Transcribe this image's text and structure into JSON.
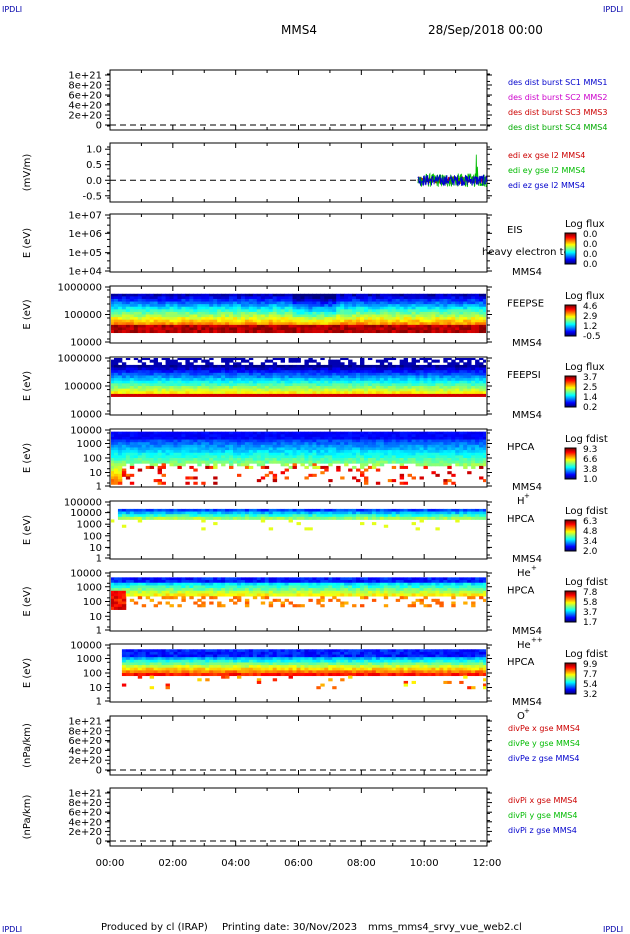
{
  "header": {
    "corner_tl": "IPDLI",
    "corner_tr": "IPDLI",
    "corner_bl": "IPDLI",
    "corner_br": "IPDLI",
    "spacecraft": "MMS4",
    "datetime": "28/Sep/2018 00:00"
  },
  "footer": {
    "produced_by": "Produced by cl (IRAP)",
    "printing_date": "Printing date: 30/Nov/2023",
    "filename": "mms_mms4_srvy_vue_web2.cl"
  },
  "chart_data": [
    {
      "type": "line",
      "panel": "des_dist_burst",
      "ylabel": "",
      "y_ticks": [
        "1e+21",
        "8e+20",
        "6e+20",
        "4e+20",
        "2e+20",
        "0"
      ],
      "ylim": [
        0,
        1e+21
      ],
      "series": [
        {
          "name": "des dist burst SC1 MMS1",
          "color": "#0000cc",
          "values": []
        },
        {
          "name": "des dist burst SC2 MMS2",
          "color": "#cc00cc",
          "values": []
        },
        {
          "name": "des dist burst SC3 MMS3",
          "color": "#cc0000",
          "values": []
        },
        {
          "name": "des dist burst SC4 MMS4",
          "color": "#00aa00",
          "values": []
        }
      ],
      "zero_line": "dashed"
    },
    {
      "type": "line",
      "panel": "edi",
      "ylabel": "(mV/m)",
      "y_ticks": [
        "1.0",
        "0.5",
        "0.0",
        "-0.5"
      ],
      "ylim": [
        -0.7,
        1.2
      ],
      "x_range_hours": [
        0,
        12
      ],
      "data_start_hours": 9.8,
      "series": [
        {
          "name": "edi ex gse l2 MMS4",
          "color": "#cc0000"
        },
        {
          "name": "edi ey gse l2 MMS4",
          "color": "#00bb00",
          "max_spike": 1.05
        },
        {
          "name": "edi ez gse l2 MMS4",
          "color": "#0000cc"
        }
      ],
      "zero_line": "dashed"
    },
    {
      "type": "heatmap",
      "panel": "eis",
      "ylabel": "E (eV)",
      "y_ticks": [
        "1e+07",
        "1e+06",
        "1e+05",
        "1e+04"
      ],
      "instrument": "EIS",
      "spacecraft": "MMS4",
      "overlay_text": "heavy electron to",
      "colorbar_title": "Log flux",
      "colorbar_ticks": [
        "0.0",
        "0.0",
        "0.0",
        "0.0"
      ],
      "empty": true
    },
    {
      "type": "heatmap",
      "panel": "feeps_electron",
      "ylabel": "E (eV)",
      "y_ticks": [
        "1000000",
        "100000",
        "10000"
      ],
      "instrument": "FEEPSE",
      "spacecraft": "MMS4",
      "colorbar_title": "Log flux",
      "colorbar_ticks": [
        "4.6",
        "2.9",
        "1.2",
        "-0.5"
      ]
    },
    {
      "type": "heatmap",
      "panel": "feeps_ion",
      "ylabel": "E (eV)",
      "y_ticks": [
        "1000000",
        "100000",
        "10000"
      ],
      "instrument": "FEEPSI",
      "spacecraft": "MMS4",
      "colorbar_title": "Log flux",
      "colorbar_ticks": [
        "3.7",
        "2.5",
        "1.4",
        "0.2"
      ]
    },
    {
      "type": "heatmap",
      "panel": "hpca_h",
      "ylabel": "E (eV)",
      "y_ticks": [
        "10000",
        "1000",
        "100",
        "10",
        "1"
      ],
      "instrument": "HPCA",
      "spacecraft": "MMS4",
      "species": "H",
      "species_sup": "+",
      "colorbar_title": "Log fdist",
      "colorbar_ticks": [
        "9.3",
        "6.6",
        "3.8",
        "1.0"
      ]
    },
    {
      "type": "heatmap",
      "panel": "hpca_he",
      "ylabel": "E (eV)",
      "y_ticks": [
        "100000",
        "10000",
        "1000",
        "100",
        "10",
        "1"
      ],
      "instrument": "HPCA",
      "spacecraft": "MMS4",
      "species": "He",
      "species_sup": "+",
      "colorbar_title": "Log fdist",
      "colorbar_ticks": [
        "6.3",
        "4.8",
        "3.4",
        "2.0"
      ]
    },
    {
      "type": "heatmap",
      "panel": "hpca_hepp",
      "ylabel": "E (eV)",
      "y_ticks": [
        "10000",
        "1000",
        "100",
        "10",
        "1"
      ],
      "instrument": "HPCA",
      "spacecraft": "MMS4",
      "species": "He",
      "species_sup": "++",
      "colorbar_title": "Log fdist",
      "colorbar_ticks": [
        "7.8",
        "5.8",
        "3.7",
        "1.7"
      ]
    },
    {
      "type": "heatmap",
      "panel": "hpca_o",
      "ylabel": "E (eV)",
      "y_ticks": [
        "10000",
        "1000",
        "100",
        "10",
        "1"
      ],
      "instrument": "HPCA",
      "spacecraft": "MMS4",
      "species": "O",
      "species_sup": "+",
      "colorbar_title": "Log fdist",
      "colorbar_ticks": [
        "9.9",
        "7.7",
        "5.4",
        "3.2"
      ]
    },
    {
      "type": "line",
      "panel": "divpe",
      "ylabel": "(nPa/km)",
      "y_ticks": [
        "1e+21",
        "8e+20",
        "6e+20",
        "4e+20",
        "2e+20",
        "0"
      ],
      "ylim": [
        0,
        1e+21
      ],
      "series": [
        {
          "name": "divPe x gse MMS4",
          "color": "#cc0000",
          "values": []
        },
        {
          "name": "divPe y gse MMS4",
          "color": "#00bb00",
          "values": []
        },
        {
          "name": "divPe z gse MMS4",
          "color": "#0000cc",
          "values": []
        }
      ],
      "zero_line": "dashed"
    },
    {
      "type": "line",
      "panel": "divpi",
      "ylabel": "(nPa/km)",
      "y_ticks": [
        "1e+21",
        "8e+20",
        "6e+20",
        "4e+20",
        "2e+20",
        "0"
      ],
      "ylim": [
        0,
        1e+21
      ],
      "series": [
        {
          "name": "divPi x gse MMS4",
          "color": "#cc0000",
          "values": []
        },
        {
          "name": "divPi y gse MMS4",
          "color": "#00bb00",
          "values": []
        },
        {
          "name": "divPi z gse MMS4",
          "color": "#0000cc",
          "values": []
        }
      ],
      "zero_line": "dashed"
    }
  ],
  "x_axis": {
    "range_hours": [
      0,
      12
    ],
    "tick_labels": [
      "00:00",
      "02:00",
      "04:00",
      "06:00",
      "08:00",
      "10:00",
      "12:00"
    ]
  }
}
